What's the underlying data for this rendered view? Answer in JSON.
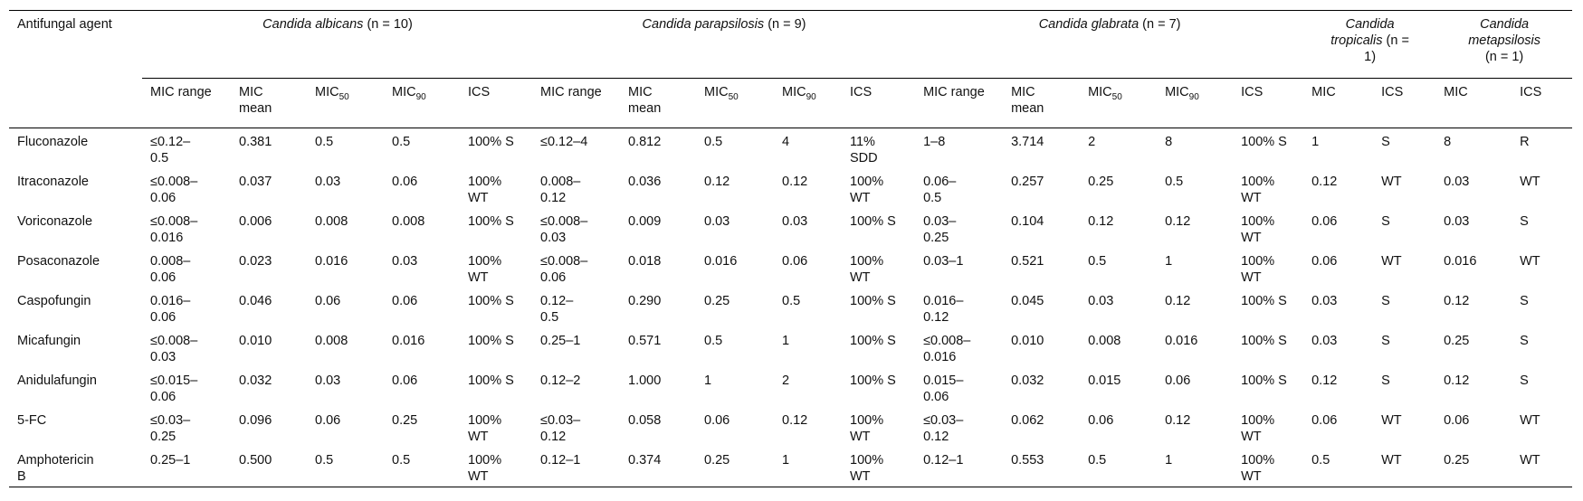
{
  "table": {
    "corner": "Antifungal agent",
    "groups": [
      {
        "name": "Candida albicans",
        "count": "(n = 10)",
        "columns": [
          {
            "text": "MIC range"
          },
          {
            "text": "MIC mean"
          },
          {
            "text": "MIC",
            "sub": "50"
          },
          {
            "text": "MIC",
            "sub": "90"
          },
          {
            "text": "ICS"
          }
        ]
      },
      {
        "name": "Candida parapsilosis",
        "count": "(n = 9)",
        "columns": [
          {
            "text": "MIC range"
          },
          {
            "text": "MIC mean"
          },
          {
            "text": "MIC",
            "sub": "50"
          },
          {
            "text": "MIC",
            "sub": "90"
          },
          {
            "text": "ICS"
          }
        ]
      },
      {
        "name": "Candida glabrata",
        "count": "(n = 7)",
        "columns": [
          {
            "text": "MIC range"
          },
          {
            "text": "MIC mean"
          },
          {
            "text": "MIC",
            "sub": "50"
          },
          {
            "text": "MIC",
            "sub": "90"
          },
          {
            "text": "ICS"
          }
        ]
      },
      {
        "name": "Candida tropicalis",
        "count": "(n = 1)",
        "columns": [
          {
            "text": "MIC"
          },
          {
            "text": "ICS"
          }
        ]
      },
      {
        "name": "Candida metapsilosis",
        "count": "(n = 1)",
        "columns": [
          {
            "text": "MIC"
          },
          {
            "text": "ICS"
          }
        ]
      }
    ],
    "rows": [
      {
        "agent": "Fluconazole",
        "cells": [
          "≤0.12–0.5",
          "0.381",
          "0.5",
          "0.5",
          "100% S",
          "≤0.12–4",
          "0.812",
          "0.5",
          "4",
          "11% SDD",
          "1–8",
          "3.714",
          "2",
          "8",
          "100% S",
          "1",
          "S",
          "8",
          "R"
        ]
      },
      {
        "agent": "Itraconazole",
        "cells": [
          "≤0.008–0.06",
          "0.037",
          "0.03",
          "0.06",
          "100% WT",
          "0.008–0.12",
          "0.036",
          "0.12",
          "0.12",
          "100% WT",
          "0.06–0.5",
          "0.257",
          "0.25",
          "0.5",
          "100% WT",
          "0.12",
          "WT",
          "0.03",
          "WT"
        ]
      },
      {
        "agent": "Voriconazole",
        "cells": [
          "≤0.008–0.016",
          "0.006",
          "0.008",
          "0.008",
          "100% S",
          "≤0.008–0.03",
          "0.009",
          "0.03",
          "0.03",
          "100% S",
          "0.03–0.25",
          "0.104",
          "0.12",
          "0.12",
          "100% WT",
          "0.06",
          "S",
          "0.03",
          "S"
        ]
      },
      {
        "agent": "Posaconazole",
        "cells": [
          "0.008–0.06",
          "0.023",
          "0.016",
          "0.03",
          "100% WT",
          "≤0.008–0.06",
          "0.018",
          "0.016",
          "0.06",
          "100% WT",
          "0.03–1",
          "0.521",
          "0.5",
          "1",
          "100% WT",
          "0.06",
          "WT",
          "0.016",
          "WT"
        ]
      },
      {
        "agent": "Caspofungin",
        "cells": [
          "0.016–0.06",
          "0.046",
          "0.06",
          "0.06",
          "100% S",
          "0.12–0.5",
          "0.290",
          "0.25",
          "0.5",
          "100% S",
          "0.016–0.12",
          "0.045",
          "0.03",
          "0.12",
          "100% S",
          "0.03",
          "S",
          "0.12",
          "S"
        ]
      },
      {
        "agent": "Micafungin",
        "cells": [
          "≤0.008–0.03",
          "0.010",
          "0.008",
          "0.016",
          "100% S",
          "0.25–1",
          "0.571",
          "0.5",
          "1",
          "100% S",
          "≤0.008–0.016",
          "0.010",
          "0.008",
          "0.016",
          "100% S",
          "0.03",
          "S",
          "0.25",
          "S"
        ]
      },
      {
        "agent": "Anidulafungin",
        "cells": [
          "≤0.015–0.06",
          "0.032",
          "0.03",
          "0.06",
          "100% S",
          "0.12–2",
          "1.000",
          "1",
          "2",
          "100% S",
          "0.015–0.06",
          "0.032",
          "0.015",
          "0.06",
          "100% S",
          "0.12",
          "S",
          "0.12",
          "S"
        ]
      },
      {
        "agent": "5-FC",
        "cells": [
          "≤0.03–0.25",
          "0.096",
          "0.06",
          "0.25",
          "100% WT",
          "≤0.03–0.12",
          "0.058",
          "0.06",
          "0.12",
          "100% WT",
          "≤0.03–0.12",
          "0.062",
          "0.06",
          "0.12",
          "100% WT",
          "0.06",
          "WT",
          "0.06",
          "WT"
        ]
      },
      {
        "agent": "Amphotericin B",
        "cells": [
          "0.25–1",
          "0.500",
          "0.5",
          "0.5",
          "100% WT",
          "0.12–1",
          "0.374",
          "0.25",
          "1",
          "100% WT",
          "0.12–1",
          "0.553",
          "0.5",
          "1",
          "100% WT",
          "0.5",
          "WT",
          "0.25",
          "WT"
        ]
      }
    ]
  }
}
